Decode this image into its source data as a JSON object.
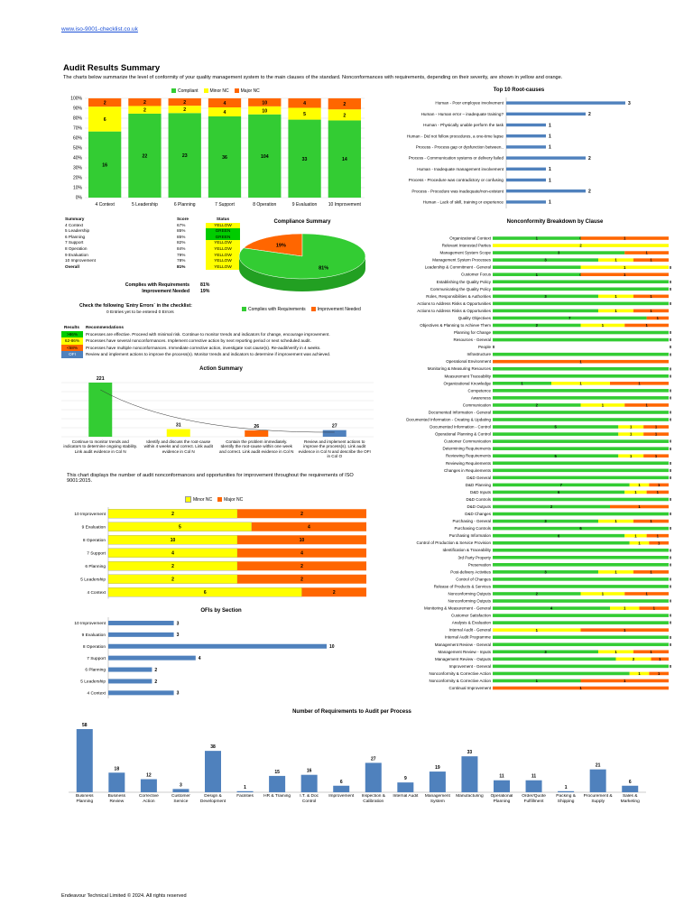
{
  "header": {
    "url": "www.iso-9001-checklist.co.uk",
    "title": "Audit Results Summary",
    "intro": "The charts below summarize the level of conformity of your quality management system to the main clauses of the standard. Nonconformances with requirements, depending on their severity, are shown in yellow and orange."
  },
  "colors": {
    "green": "#33cc33",
    "yellow": "#ffff00",
    "orange": "#ff6600",
    "blue": "#4f81bd"
  },
  "legend_top": [
    "Compliant",
    "Minor NC",
    "Major NC"
  ],
  "summary": {
    "headers": [
      "Summary",
      "Score",
      "Status"
    ],
    "rows": [
      [
        "4 Context",
        "67%",
        "YELLOW"
      ],
      [
        "5 Leadership",
        "85%",
        "GREEN"
      ],
      [
        "6 Planning",
        "85%",
        "GREEN"
      ],
      [
        "7 Support",
        "82%",
        "YELLOW"
      ],
      [
        "8 Operation",
        "84%",
        "YELLOW"
      ],
      [
        "9 Evaluation",
        "79%",
        "YELLOW"
      ],
      [
        "10 Improvement",
        "78%",
        "YELLOW"
      ]
    ],
    "overall_label": "Overall",
    "overall_score": "81%",
    "overall_status": "YELLOW",
    "complies_label": "Complies with Requirements",
    "complies_value": "81%",
    "improve_label": "Improvement Needed",
    "improve_value": "19%",
    "entry_errors_title": "Check the following `Entry Errors` in the checklist:",
    "entry_errors_text": "0 Entries yet to be entered  0 Errors"
  },
  "results": {
    "headers": [
      "Results",
      "Recommendations"
    ],
    "rows": [
      {
        "band": ">86%",
        "color": "#00cc00",
        "text": "Processes are effective. Proceed with minimal risk. Continue to monitor trends and indicators for change, encourage improvement."
      },
      {
        "band": "62-86%",
        "color": "#ffff00",
        "text": "Processes have several nonconformances. Implement corrective action by next reporting period or next scheduled audit."
      },
      {
        "band": "<58%",
        "color": "#ff6600",
        "text": "Processes have multiple nonconformances. Immediate corrective action, investigate root cause(s). Re-audit/verify in 4 weeks."
      },
      {
        "band": "OFI",
        "color": "#4f81bd",
        "text": "Review and implement actions to improve the process(s). Monitor trends and indicators to determine if improvement was achieved."
      }
    ]
  },
  "action_note": "This chart displays the number of audit nonconformances and opportunities for improvement throughout the requirements of ISO 9001:2015.",
  "footer": "Endeavour Technical Limited © 2024. All rights reserved",
  "chart_data": [
    {
      "id": "clause-stacked",
      "type": "bar",
      "categories": [
        "4 Context",
        "5 Leadership",
        "6 Planning",
        "7 Support",
        "8 Operation",
        "9 Evaluation",
        "10 Improvement"
      ],
      "series": [
        {
          "name": "Compliant",
          "values": [
            16,
            22,
            23,
            36,
            104,
            33,
            14
          ]
        },
        {
          "name": "Minor NC",
          "values": [
            6,
            2,
            2,
            4,
            10,
            5,
            2
          ]
        },
        {
          "name": "Major NC",
          "values": [
            2,
            2,
            2,
            4,
            10,
            4,
            2
          ]
        }
      ],
      "yticks": [
        "0%",
        "10%",
        "20%",
        "30%",
        "40%",
        "50%",
        "60%",
        "70%",
        "80%",
        "90%",
        "100%"
      ]
    },
    {
      "id": "root-causes",
      "type": "bar",
      "title": "Top 10 Root-causes",
      "categories": [
        "Human - Poor employee involvement",
        "Human - Human error – inadequate training?",
        "Human - Physically unable perform the task",
        "Human - Did not follow procedures, a one-time lapse",
        "Process - Process gap or dysfunction between..",
        "Process - Communication systems or delivery failed",
        "Human - Inadequate management involvement",
        "Process - Procedure was contradictory or confusing",
        "Process - Procedure was inadequate/non-existent",
        "Human - Lack of skill, training or experience"
      ],
      "values": [
        3,
        2,
        1,
        1,
        1,
        2,
        1,
        1,
        2,
        1
      ]
    },
    {
      "id": "compliance-pie",
      "type": "pie",
      "title": "Compliance Summary",
      "labels": [
        "Complies with Requirements",
        "Improvement Needed"
      ],
      "values": [
        81,
        19
      ],
      "value_labels": [
        "81%",
        "19%"
      ]
    },
    {
      "id": "action-summary",
      "type": "bar",
      "title": "Action Summary",
      "categories": [
        "Continue to monitor trends and indicators to determine ongoing stability. Link audit evidence in Col N",
        "Identify and discuss the root-cause within 4 weeks and correct. Link audit evidence in Col N",
        "Contain the problem immediately. Identify the root-cause within one week and correct. Link audit evidence in Col N",
        "Review and implement actions to improve the process(s). Link audit evidence in Col N and describe the OFI in Col O"
      ],
      "values": [
        221,
        31,
        26,
        27
      ]
    },
    {
      "id": "nc-by-section",
      "type": "bar",
      "categories": [
        "10 Improvement",
        "9 Evaluation",
        "8 Operation",
        "7 Support",
        "6 Planning",
        "5 Leadership",
        "4 Context"
      ],
      "series": [
        {
          "name": "Minor NC",
          "values": [
            2,
            5,
            10,
            4,
            2,
            2,
            6
          ]
        },
        {
          "name": "Major NC",
          "values": [
            2,
            4,
            10,
            4,
            2,
            2,
            2
          ]
        }
      ]
    },
    {
      "id": "ofi-by-section",
      "type": "bar",
      "title": "OFIs by Section",
      "categories": [
        "10 Improvement",
        "9 Evaluation",
        "8 Operation",
        "7 Support",
        "6 Planning",
        "5 Leadership",
        "4 Context"
      ],
      "values": [
        3,
        3,
        10,
        4,
        2,
        2,
        3
      ]
    },
    {
      "id": "nc-breakdown",
      "type": "bar",
      "title": "Nonconformity Breakdown by Clause",
      "categories": [
        "Organizational Context",
        "Relevant Interested Parties",
        "Management System Scope",
        "Management System Processes",
        "Leadership & Commitment - General",
        "Customer Focus",
        "Establishing the Quality Policy",
        "Communicating the Quality Policy",
        "Roles, Responsibilities & Authorities",
        "Actions to Address Risks & Opportunities",
        "Actions to Address Risks & Opportunities",
        "Quality Objectives",
        "Objectives & Planning to Achieve Them",
        "Planning for Change",
        "Resources - General",
        "People",
        "Infrastructure",
        "Operational Environment",
        "Monitoring & Measuring Resources",
        "Measurement Traceability",
        "Organizational Knowledge",
        "Competence",
        "Awareness",
        "Communication",
        "Documented Information - General",
        "Documented Information - Creating & Updating",
        "Documented Information - Control",
        "Operational Planning & Control",
        "Customer Communication",
        "Determining Requirements",
        "Reviewing Requirements",
        "Reviewing Requirements",
        "Changes in Requirements",
        "D&D General",
        "D&D Planning",
        "D&D Inputs",
        "D&D Controls",
        "D&D Outputs",
        "D&D Changes",
        "Purchasing - General",
        "Purchasing Controls",
        "Purchasing Information",
        "Control of Production & Service Provision",
        "Identification & Traceability",
        "3rd Party Property",
        "Preservation",
        "Post-delivery Activities",
        "Control of Changes",
        "Release of Products & Services",
        "Nonconforming Outputs",
        "Nonconforming Outputs",
        "Monitoring & Measurement - General",
        "Customer Satisfaction",
        "Analysis & Evaluation",
        "Internal Audit - General",
        "Internal Audit Programme",
        "Management Review - General",
        "Management Review - Inputs",
        "Management Review - Outputs",
        "Improvement - General",
        "Nonconformity & Corrective Action",
        "Nonconformity & Corrective Action",
        "Continual Improvement"
      ],
      "series": [
        {
          "name": "Compliant",
          "values": [
            1,
            0,
            3,
            3,
            1,
            1,
            4,
            3,
            3,
            4,
            3,
            7,
            2,
            5,
            3,
            0,
            1,
            0,
            3,
            3,
            1,
            3,
            3,
            2,
            3,
            3,
            5,
            5,
            4,
            3,
            5,
            2,
            1,
            3,
            7,
            6,
            6,
            2,
            5,
            3,
            6,
            6,
            7,
            2,
            3,
            5,
            3,
            2,
            2,
            2,
            4,
            4,
            3,
            3,
            0,
            6,
            1,
            3,
            7,
            3,
            7,
            1,
            0
          ],
          "labels": [
            "1",
            "",
            "3",
            "3",
            "",
            "1",
            "",
            "",
            "3",
            "",
            "",
            "7",
            "2",
            "",
            "",
            "0",
            "",
            "0",
            "",
            "",
            "1",
            "",
            "",
            "2",
            "",
            "",
            "5",
            "",
            "",
            "",
            "5",
            "",
            "",
            "",
            "7",
            "6",
            "",
            "2",
            "",
            "3",
            "6",
            "6",
            "",
            "",
            "",
            "",
            "3",
            "",
            "",
            "2",
            "",
            "4",
            "",
            "",
            "0",
            "",
            "",
            "3",
            "",
            "",
            "",
            "1",
            "0"
          ]
        },
        {
          "name": "Minor NC",
          "values": [
            0,
            2,
            0,
            1,
            1,
            0,
            0,
            0,
            1,
            0,
            1,
            0,
            1,
            0,
            0,
            0,
            0,
            0,
            0,
            0,
            1,
            0,
            0,
            1,
            0,
            0,
            1,
            1,
            0,
            0,
            1,
            0,
            0,
            0,
            1,
            1,
            0,
            0,
            0,
            1,
            0,
            1,
            1,
            0,
            0,
            0,
            1,
            0,
            0,
            1,
            0,
            1,
            0,
            0,
            1,
            0,
            0,
            1,
            2,
            0,
            1,
            0,
            0
          ],
          "labels": [
            "0",
            "2",
            "",
            "1",
            "1",
            "0",
            "",
            "",
            "1",
            "",
            "1",
            "",
            "1",
            "",
            "",
            "",
            "",
            "",
            "",
            "",
            "1",
            "",
            "",
            "1",
            "",
            "",
            "1",
            "1",
            "",
            "",
            "1",
            "",
            "",
            "",
            "1",
            "1",
            "",
            "",
            "",
            "1",
            "",
            "1",
            "1",
            "",
            "",
            "",
            "1",
            "",
            "",
            "1",
            "",
            "1",
            "",
            "",
            "1",
            "",
            "",
            "1",
            "2",
            "",
            "1",
            "",
            ""
          ]
        },
        {
          "name": "Major NC",
          "values": [
            1,
            0,
            1,
            1,
            0,
            1,
            0,
            0,
            1,
            0,
            1,
            1,
            1,
            0,
            0,
            0,
            0,
            1,
            0,
            0,
            1,
            0,
            0,
            1,
            0,
            0,
            1,
            1,
            0,
            0,
            1,
            0,
            0,
            0,
            1,
            1,
            0,
            1,
            0,
            1,
            0,
            1,
            1,
            0,
            0,
            0,
            1,
            0,
            0,
            1,
            0,
            1,
            0,
            0,
            1,
            0,
            0,
            1,
            1,
            0,
            1,
            1,
            1
          ],
          "labels": [
            "1",
            "",
            "1",
            "1",
            "0",
            "1",
            "0",
            "0",
            "1",
            "0",
            "1",
            "1",
            "1",
            "0",
            "0",
            "0",
            "0",
            "1",
            "0",
            "0",
            "1",
            "0",
            "0",
            "1",
            "0",
            "0",
            "1",
            "1",
            "0",
            "0",
            "1",
            "0",
            "0",
            "0",
            "1",
            "1",
            "0",
            "1",
            "0",
            "1",
            "0",
            "1",
            "1",
            "0",
            "0",
            "0",
            "1",
            "0",
            "0",
            "1",
            "0",
            "1",
            "0",
            "0",
            "1",
            "0",
            "0",
            "1",
            "1",
            "0",
            "1",
            "1",
            "1"
          ]
        }
      ]
    },
    {
      "id": "req-per-process",
      "type": "bar",
      "title": "Number of Requirements to Audit per Process",
      "categories": [
        "Business Planning",
        "Business Review",
        "Corrective Action",
        "Customer Service",
        "Design & Development",
        "Facilities",
        "HR & Training",
        "I.T. & Doc Control",
        "Improvement",
        "Inspection & Calibration",
        "Internal Audit",
        "Management System",
        "Manufacturing",
        "Operational Planning",
        "Order/Quote Fulfillment",
        "Packing & Shipping",
        "Procurement & Supply",
        "Sales & Marketing"
      ],
      "values": [
        58,
        18,
        12,
        3,
        38,
        1,
        15,
        16,
        6,
        27,
        9,
        19,
        33,
        11,
        11,
        1,
        21,
        6
      ]
    }
  ]
}
